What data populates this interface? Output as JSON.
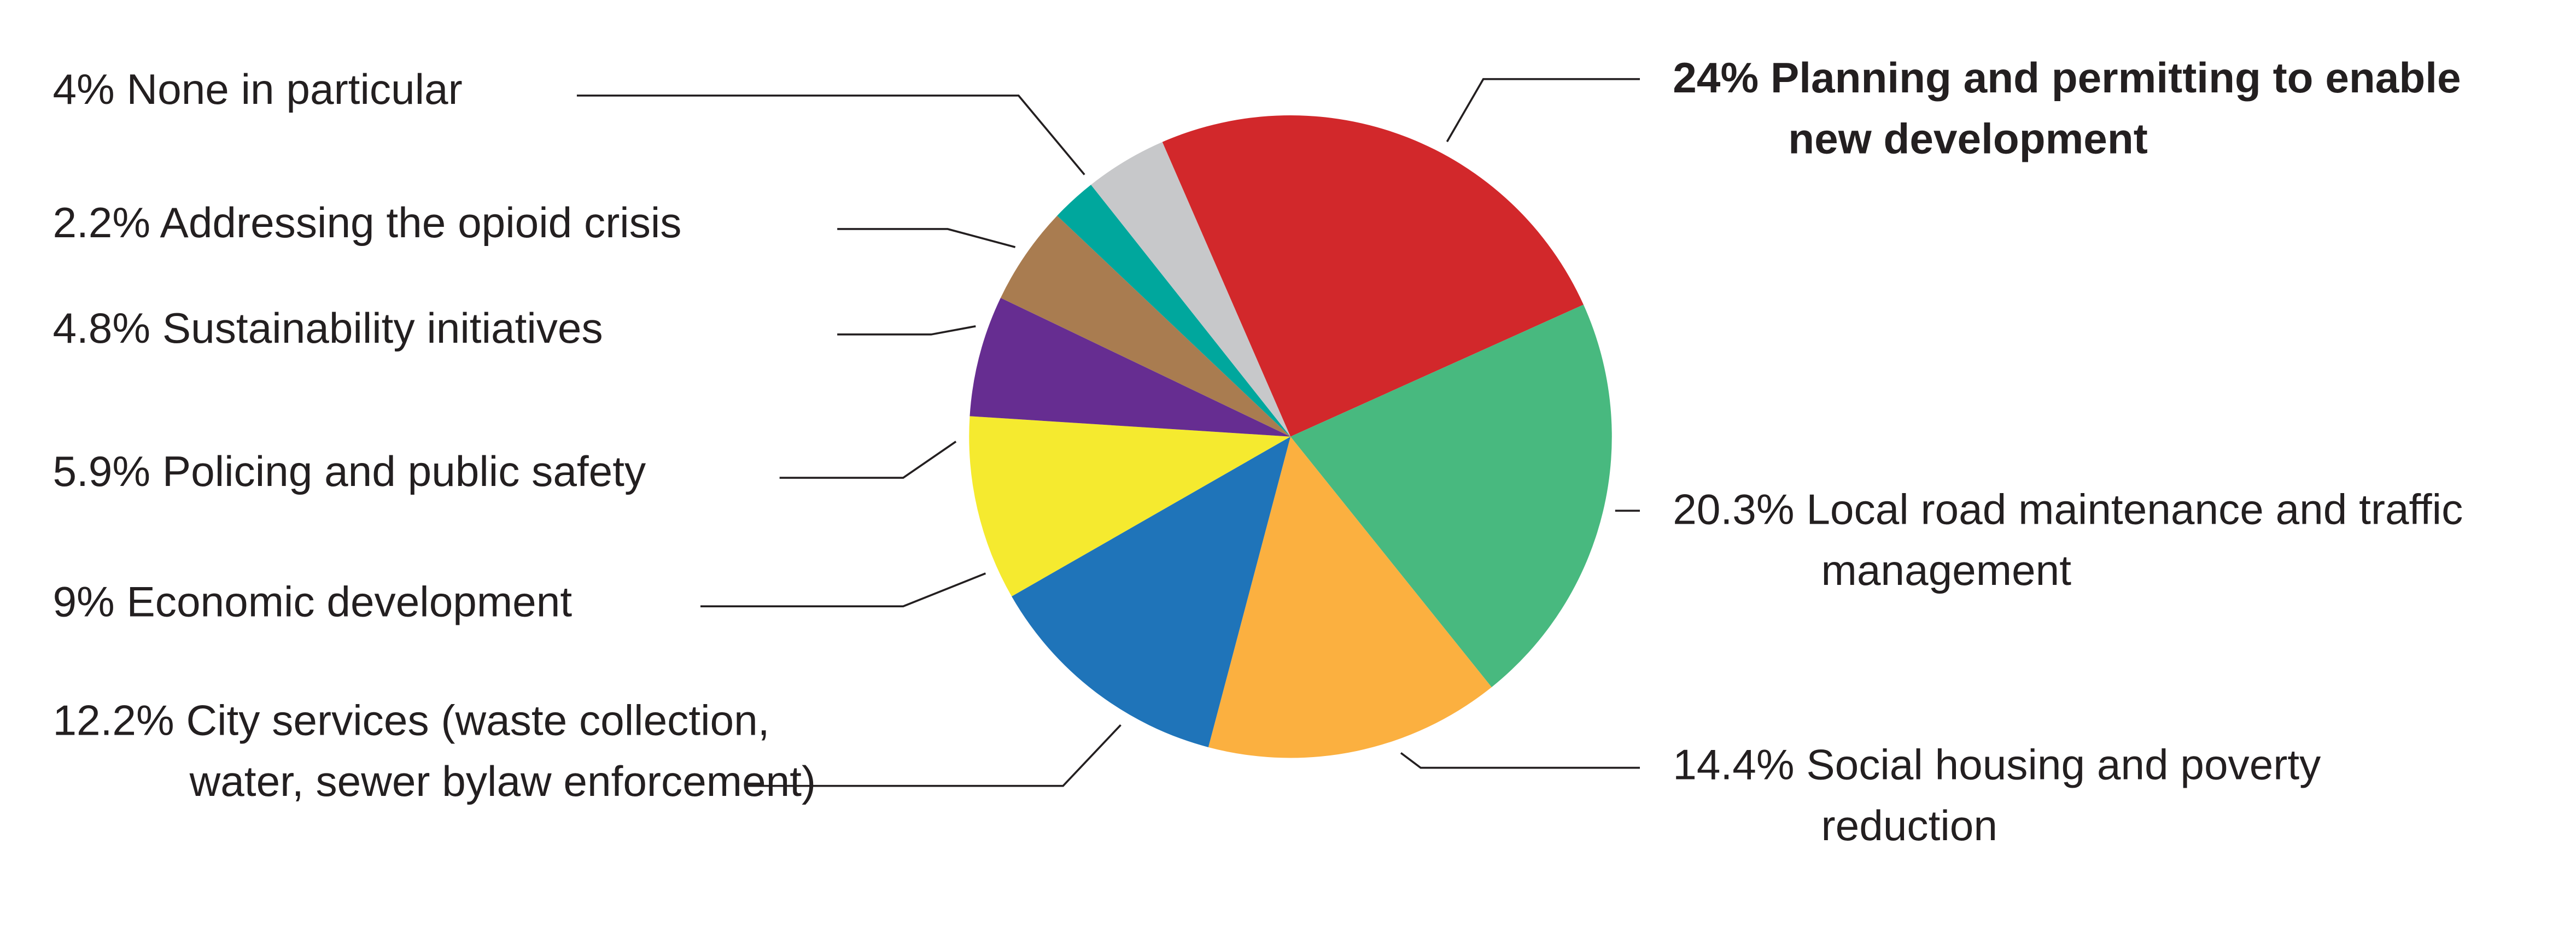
{
  "chart_data": {
    "type": "pie",
    "categories": [
      "Planning and permitting to enable new development",
      "Local road maintenance and traffic management",
      "Social housing and poverty reduction",
      "City services (waste collection, water, sewer bylaw enforcement)",
      "Economic development",
      "Policing and public safety",
      "Sustainability initiatives",
      "Addressing the opioid crisis",
      "None in particular"
    ],
    "values": [
      24,
      20.3,
      14.4,
      12.2,
      9,
      5.9,
      4.8,
      2.2,
      4
    ],
    "value_labels": [
      "24%",
      "20.3%",
      "14.4%",
      "12.2%",
      "9%",
      "5.9%",
      "4.8%",
      "2.2%",
      "4%"
    ],
    "colors": [
      "#d2282b",
      "#48b97f",
      "#fbb040",
      "#1f74b9",
      "#f5ea2f",
      "#662d91",
      "#a97c50",
      "#00a79d",
      "#c7c8ca"
    ]
  }
}
